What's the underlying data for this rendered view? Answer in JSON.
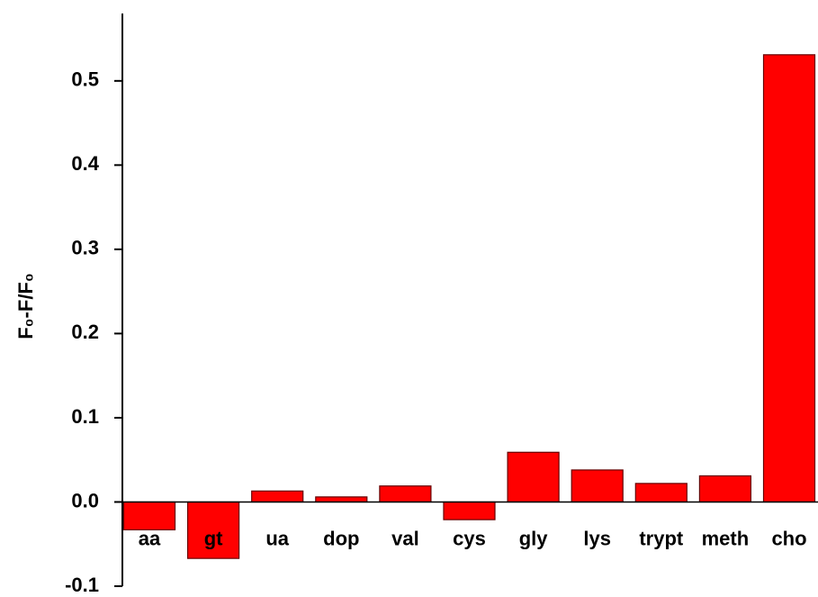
{
  "chart_data": {
    "type": "bar",
    "y_label": "F₀-F/F₀",
    "categories": [
      "aa",
      "gt",
      "ua",
      "dop",
      "val",
      "cys",
      "gly",
      "lys",
      "trypt",
      "meth",
      "cho"
    ],
    "values": [
      -0.033,
      -0.067,
      0.013,
      0.006,
      0.019,
      -0.021,
      0.059,
      0.038,
      0.022,
      0.031,
      0.531
    ],
    "color": "#ff0000",
    "ylim": [
      -0.1,
      0.58
    ],
    "yticks": [
      -0.1,
      {
        "value": 0,
        "label": "0.0"
      },
      0.1,
      0.2,
      0.3,
      0.4,
      0.5
    ]
  }
}
